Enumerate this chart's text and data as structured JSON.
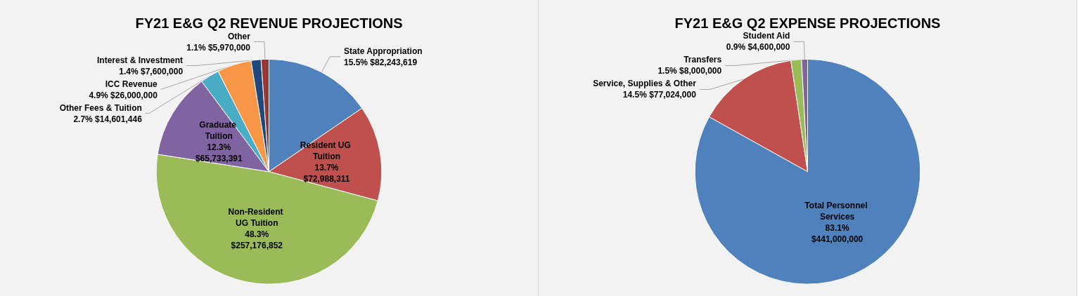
{
  "chart_data": [
    {
      "type": "pie",
      "title": "FY21 E&G Q2 REVENUE PROJECTIONS",
      "categories": [
        "State Appropriation",
        "Resident UG Tuition",
        "Non-Resident UG Tuition",
        "Graduate Tuition",
        "Other Fees & Tuition",
        "ICC Revenue",
        "Interest & Investment",
        "Other"
      ],
      "values": [
        82243619,
        72988311,
        257176852,
        65733391,
        14601446,
        26000000,
        7600000,
        5970000
      ],
      "value_labels": [
        "15.5% $82,243,619",
        "13.7% $72,988,311",
        "48.3% $257,176,852",
        "12.3% $65,733,391",
        "2.7% $14,601,446",
        "4.9% $26,000,000",
        "1.4% $7,600,000",
        "1.1% $5,970,000"
      ],
      "colors": [
        "#4f81bd",
        "#c0504d",
        "#9bbb59",
        "#8064a2",
        "#4bacc6",
        "#f79646",
        "#1f497d",
        "#953735"
      ],
      "legend": false
    },
    {
      "type": "pie",
      "title": "FY21 E&G Q2 EXPENSE PROJECTIONS",
      "categories": [
        "Total Personnel Services",
        "Service, Supplies & Other",
        "Transfers",
        "Student Aid"
      ],
      "values": [
        441000000,
        77024000,
        8000000,
        4600000
      ],
      "value_labels": [
        "83.1% $441,000,000",
        "14.5% $77,024,000",
        "1.5% $8,000,000",
        "0.9% $4,600,000"
      ],
      "colors": [
        "#4f81bd",
        "#c0504d",
        "#9bbb59",
        "#8064a2"
      ],
      "legend": false
    }
  ]
}
